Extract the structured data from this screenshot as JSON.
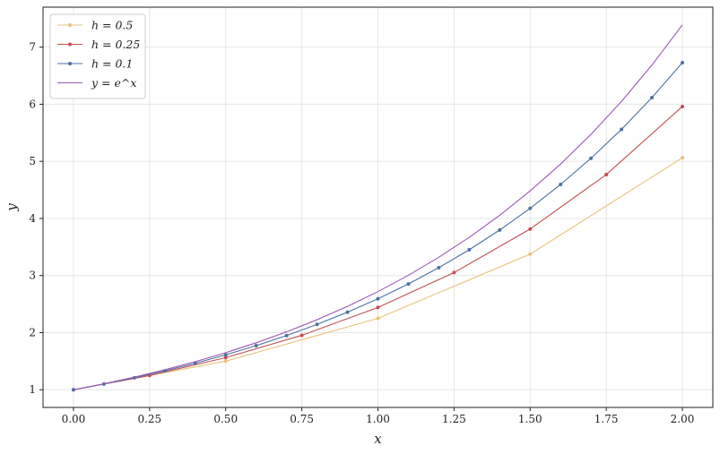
{
  "chart_data": {
    "type": "line",
    "xlabel": "x",
    "ylabel": "y",
    "xlim": [
      -0.1,
      2.1
    ],
    "ylim": [
      0.69,
      7.7
    ],
    "xticks": [
      0.0,
      0.25,
      0.5,
      0.75,
      1.0,
      1.25,
      1.5,
      1.75,
      2.0
    ],
    "xtick_labels": [
      "0.00",
      "0.25",
      "0.50",
      "0.75",
      "1.00",
      "1.25",
      "1.50",
      "1.75",
      "2.00"
    ],
    "yticks": [
      1,
      2,
      3,
      4,
      5,
      6,
      7
    ],
    "ytick_labels": [
      "1",
      "2",
      "3",
      "4",
      "5",
      "6",
      "7"
    ],
    "grid": true,
    "legend_position": "top-left",
    "series": [
      {
        "name": "h = 0.5",
        "color": "#e8c27a",
        "markers": true,
        "x": [
          0.0,
          0.5,
          1.0,
          1.5,
          2.0
        ],
        "y": [
          1.0,
          1.5,
          2.25,
          3.375,
          5.0625
        ]
      },
      {
        "name": "h = 0.25",
        "color": "#c44e52",
        "markers": true,
        "x": [
          0.0,
          0.25,
          0.5,
          0.75,
          1.0,
          1.25,
          1.5,
          1.75,
          2.0
        ],
        "y": [
          1.0,
          1.25,
          1.5625,
          1.953,
          2.441,
          3.052,
          3.815,
          4.768,
          5.96
        ]
      },
      {
        "name": "h = 0.1",
        "color": "#4c72a0",
        "markers": true,
        "x": [
          0.0,
          0.1,
          0.2,
          0.3,
          0.4,
          0.5,
          0.6,
          0.7,
          0.8,
          0.9,
          1.0,
          1.1,
          1.2,
          1.3,
          1.4,
          1.5,
          1.6,
          1.7,
          1.8,
          1.9,
          2.0
        ],
        "y": [
          1.0,
          1.1,
          1.21,
          1.331,
          1.464,
          1.611,
          1.772,
          1.949,
          2.144,
          2.358,
          2.594,
          2.853,
          3.138,
          3.452,
          3.797,
          4.177,
          4.595,
          5.054,
          5.56,
          6.116,
          6.727
        ]
      },
      {
        "name": "y = e^x",
        "color": "#9b59b6",
        "markers": false,
        "x": [
          0.0,
          0.1,
          0.2,
          0.3,
          0.4,
          0.5,
          0.6,
          0.7,
          0.8,
          0.9,
          1.0,
          1.1,
          1.2,
          1.3,
          1.4,
          1.5,
          1.6,
          1.7,
          1.8,
          1.9,
          2.0
        ],
        "y": [
          1.0,
          1.105,
          1.221,
          1.35,
          1.492,
          1.649,
          1.822,
          2.014,
          2.226,
          2.46,
          2.718,
          3.004,
          3.32,
          3.669,
          4.055,
          4.482,
          4.953,
          5.474,
          6.05,
          6.686,
          7.389
        ]
      }
    ]
  }
}
